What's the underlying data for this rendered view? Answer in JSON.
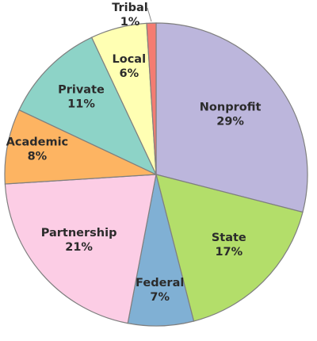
{
  "chart_data": {
    "type": "pie",
    "title": "",
    "slices": [
      {
        "label": "Nonprofit",
        "value": 29,
        "display": "29%",
        "color": "#bcb6dc"
      },
      {
        "label": "State",
        "value": 17,
        "display": "17%",
        "color": "#b3de6a"
      },
      {
        "label": "Federal",
        "value": 7,
        "display": "7%",
        "color": "#80b0d4"
      },
      {
        "label": "Partnership",
        "value": 21,
        "display": "21%",
        "color": "#fccde5"
      },
      {
        "label": "Academic",
        "value": 8,
        "display": "8%",
        "color": "#fdb462"
      },
      {
        "label": "Private",
        "value": 11,
        "display": "11%",
        "color": "#8dd3c7"
      },
      {
        "label": "Local",
        "value": 6,
        "display": "6%",
        "color": "#ffffb3"
      },
      {
        "label": "Tribal",
        "value": 1,
        "display": "1%",
        "color": "#f47c72"
      }
    ],
    "start_angle_deg": 0,
    "direction": "clockwise",
    "legend": "none",
    "label_position": "inside"
  }
}
